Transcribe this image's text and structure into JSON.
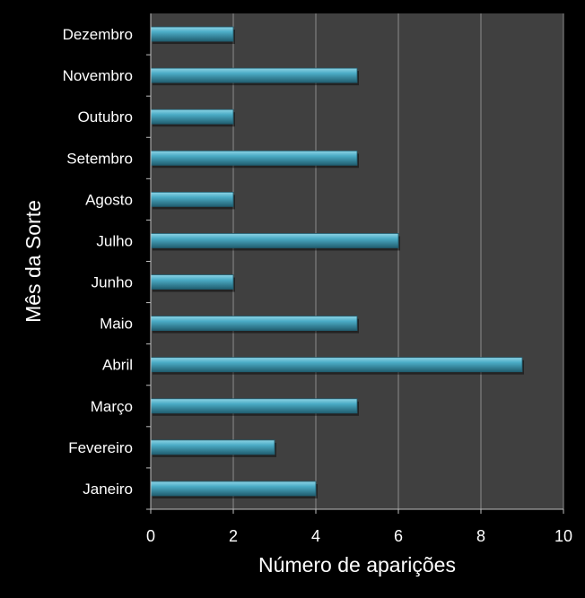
{
  "chart_data": {
    "type": "bar",
    "orientation": "horizontal",
    "title": "",
    "xlabel": "Número de aparições",
    "ylabel": "Mês da Sorte",
    "categories": [
      "Janeiro",
      "Fevereiro",
      "Março",
      "Abril",
      "Maio",
      "Junho",
      "Julho",
      "Agosto",
      "Setembro",
      "Outubro",
      "Novembro",
      "Dezembro"
    ],
    "values": [
      4,
      3,
      5,
      9,
      5,
      2,
      6,
      2,
      5,
      2,
      5,
      2
    ],
    "xlim": [
      0,
      10
    ],
    "xticks": [
      0,
      2,
      4,
      6,
      8,
      10
    ],
    "grid": true,
    "colors": {
      "bar": "#4BACC6",
      "bar_light": "#8ED4E6",
      "bar_dark": "#215E70",
      "plot_background": "#404040",
      "page_background": "#000000",
      "gridline": "#8C8C8C",
      "text": "#FFFFFF"
    }
  }
}
